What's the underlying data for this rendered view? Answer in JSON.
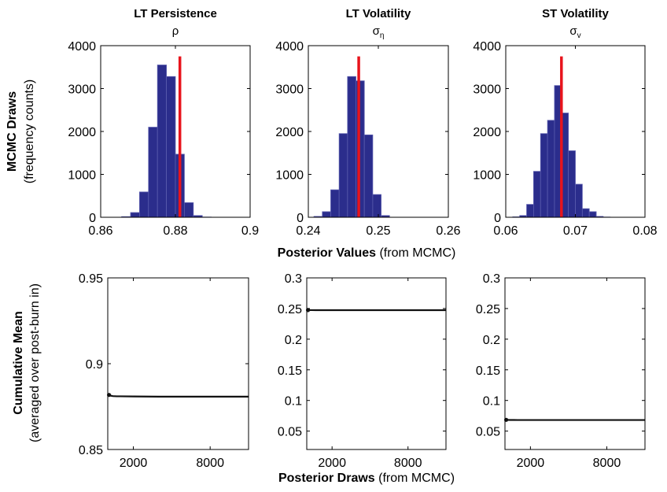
{
  "figure": {
    "top_ylabel_bold": "MCMC Draws",
    "top_ylabel": "(frequency counts)",
    "top_xlabel_bold": "Posterior Values",
    "top_xlabel": " (from MCMC)",
    "bottom_ylabel_bold": "Cumulative Mean",
    "bottom_ylabel": "(averaged over post-burn in)",
    "bottom_xlabel_bold": "Posterior Draws",
    "bottom_xlabel": " (from MCMC)",
    "colors": {
      "bar_fill": "#2b2d8c",
      "bar_edge": "#5a5cae",
      "marker_line": "#e8141c",
      "trace": "#111111"
    }
  },
  "chart_data": [
    {
      "type": "bar",
      "panel": "top-left",
      "title": "LT Persistence",
      "subtitle_symbol": "ρ",
      "subtitle_sub": "",
      "xlim": [
        0.86,
        0.9
      ],
      "ylim": [
        0,
        4000
      ],
      "xticks": [
        0.86,
        0.88,
        0.9
      ],
      "xtick_labels": [
        "0.86",
        "0.88",
        "0.9"
      ],
      "yticks": [
        0,
        1000,
        2000,
        3000,
        4000
      ],
      "ytick_labels": [
        "0",
        "1000",
        "2000",
        "3000",
        "4000"
      ],
      "bin_edges": [
        0.8656,
        0.868,
        0.8704,
        0.8728,
        0.8752,
        0.8776,
        0.88,
        0.8824,
        0.8848,
        0.8872,
        0.8896,
        0.892,
        0.8944
      ],
      "counts": [
        15,
        110,
        590,
        2100,
        3550,
        3280,
        1470,
        340,
        40,
        5,
        0,
        0
      ],
      "marker": 0.8812
    },
    {
      "type": "bar",
      "panel": "top-middle",
      "title": "LT Volatility",
      "subtitle_symbol": "σ",
      "subtitle_sub": "η",
      "xlim": [
        0.24,
        0.26
      ],
      "ylim": [
        0,
        4000
      ],
      "xticks": [
        0.24,
        0.25,
        0.26
      ],
      "xtick_labels": [
        "0.24",
        "0.25",
        "0.26"
      ],
      "yticks": [
        0,
        1000,
        2000,
        3000,
        4000
      ],
      "ytick_labels": [
        "0",
        "1000",
        "2000",
        "3000",
        "4000"
      ],
      "bin_edges": [
        0.2408,
        0.242,
        0.2432,
        0.2444,
        0.2456,
        0.2468,
        0.248,
        0.2492,
        0.2504,
        0.2516,
        0.2528
      ],
      "counts": [
        20,
        130,
        640,
        1950,
        3280,
        3180,
        1920,
        530,
        40,
        0
      ],
      "marker": 0.2472
    },
    {
      "type": "bar",
      "panel": "top-right",
      "title": "ST Volatility",
      "subtitle_symbol": "σ",
      "subtitle_sub": "v",
      "xlim": [
        0.06,
        0.08
      ],
      "ylim": [
        0,
        4000
      ],
      "xticks": [
        0.06,
        0.07,
        0.08
      ],
      "xtick_labels": [
        "0.06",
        "0.07",
        "0.08"
      ],
      "yticks": [
        0,
        1000,
        2000,
        3000,
        4000
      ],
      "ytick_labels": [
        "0",
        "1000",
        "2000",
        "3000",
        "4000"
      ],
      "bin_edges": [
        0.061,
        0.062,
        0.063,
        0.064,
        0.065,
        0.066,
        0.067,
        0.068,
        0.069,
        0.07,
        0.071,
        0.072,
        0.073,
        0.074,
        0.075
      ],
      "counts": [
        10,
        40,
        300,
        1070,
        1950,
        2260,
        3070,
        2430,
        1550,
        770,
        200,
        130,
        20,
        5
      ],
      "marker": 0.068
    },
    {
      "type": "line",
      "panel": "bottom-left",
      "xlim": [
        0,
        11000
      ],
      "ylim": [
        0.85,
        0.95
      ],
      "xticks": [
        2000,
        8000
      ],
      "xtick_labels": [
        "2000",
        "8000"
      ],
      "yticks": [
        0.85,
        0.9,
        0.95
      ],
      "ytick_labels": [
        "0.85",
        "0.9",
        "0.95"
      ],
      "x": [
        100,
        200,
        400,
        700,
        1000,
        2000,
        4000,
        6000,
        8000,
        10000,
        11000
      ],
      "y": [
        0.8818,
        0.8814,
        0.8811,
        0.881,
        0.881,
        0.8809,
        0.8808,
        0.8808,
        0.8808,
        0.8808,
        0.8808
      ]
    },
    {
      "type": "line",
      "panel": "bottom-middle",
      "xlim": [
        0,
        11000
      ],
      "ylim": [
        0.02,
        0.3
      ],
      "xticks": [
        2000,
        8000
      ],
      "xtick_labels": [
        "2000",
        "8000"
      ],
      "yticks": [
        0.05,
        0.1,
        0.15,
        0.2,
        0.25,
        0.3
      ],
      "ytick_labels": [
        "0.05",
        "0.1",
        "0.15",
        "0.2",
        "0.25",
        "0.3"
      ],
      "x": [
        100,
        200,
        400,
        700,
        1000,
        2000,
        4000,
        6000,
        8000,
        10000,
        11000
      ],
      "y": [
        0.2475,
        0.2474,
        0.2474,
        0.2473,
        0.2473,
        0.2473,
        0.2473,
        0.2473,
        0.2473,
        0.2473,
        0.2473
      ]
    },
    {
      "type": "line",
      "panel": "bottom-right",
      "xlim": [
        0,
        11000
      ],
      "ylim": [
        0.02,
        0.3
      ],
      "xticks": [
        2000,
        8000
      ],
      "xtick_labels": [
        "2000",
        "8000"
      ],
      "yticks": [
        0.05,
        0.1,
        0.15,
        0.2,
        0.25,
        0.3
      ],
      "ytick_labels": [
        "0.05",
        "0.1",
        "0.15",
        "0.2",
        "0.25",
        "0.3"
      ],
      "x": [
        100,
        200,
        400,
        700,
        1000,
        2000,
        4000,
        6000,
        8000,
        10000,
        11000
      ],
      "y": [
        0.0684,
        0.0683,
        0.0682,
        0.0682,
        0.0681,
        0.0681,
        0.0681,
        0.0681,
        0.0681,
        0.0681,
        0.0681
      ]
    }
  ]
}
